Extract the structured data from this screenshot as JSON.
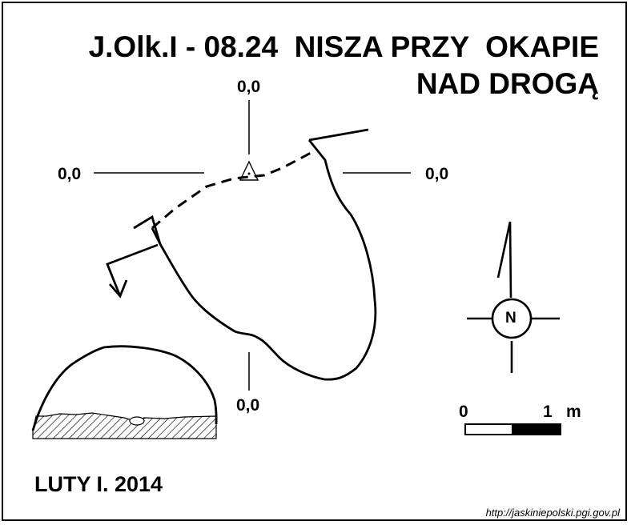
{
  "title": {
    "line1": "J.Olk.I - 08.24  NISZA PRZY  OKAPIE",
    "line2": "NAD DROGĄ"
  },
  "elevations": {
    "top": "0,0",
    "left": "0,0",
    "right": "0,0",
    "bottom": "0,0"
  },
  "north_label": "N",
  "scale": {
    "zero": "0",
    "one": "1",
    "unit": "m"
  },
  "author_date": "LUTY I. 2014",
  "source_url": "http://jaskiniepolski.pgi.gov.pl",
  "colors": {
    "ink": "#000000",
    "paper": "#ffffff"
  },
  "icons": [
    "datum-triangle-icon",
    "north-arrow-icon",
    "entrance-arrow-icon"
  ]
}
